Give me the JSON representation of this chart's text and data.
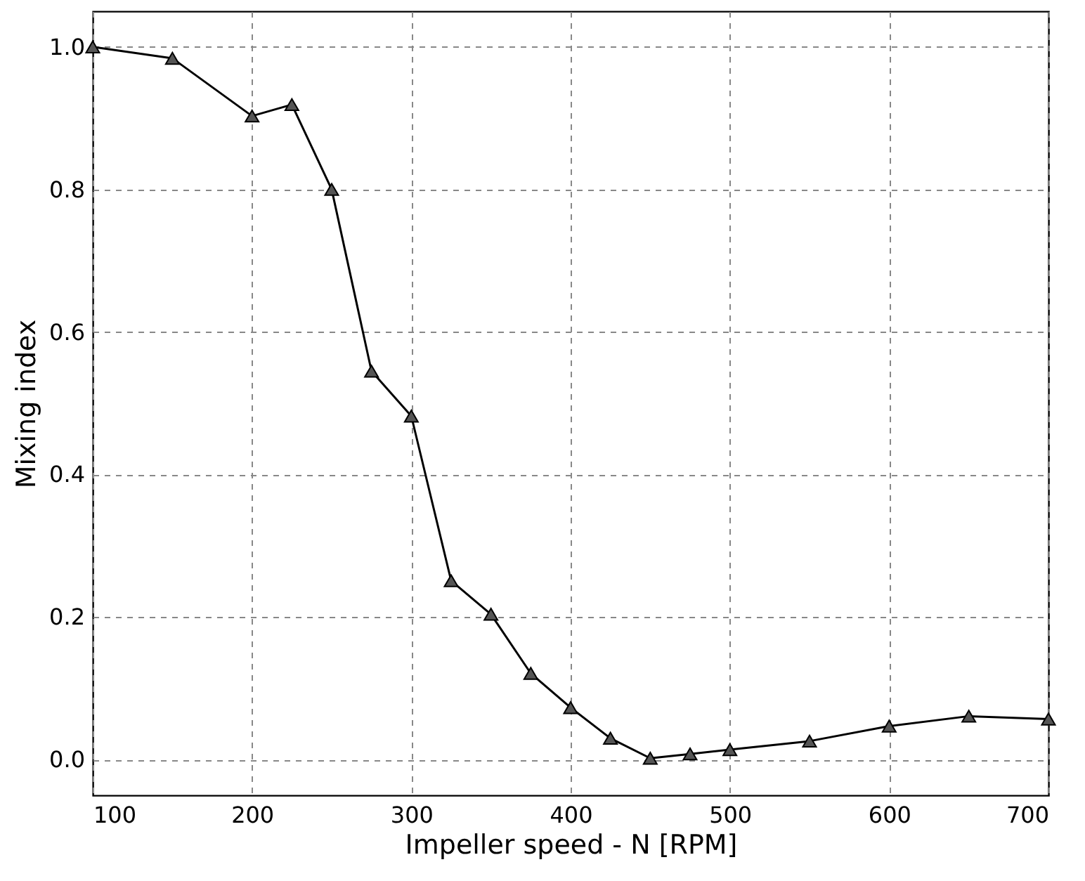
{
  "chart_data": {
    "type": "line",
    "xlabel": "Impeller speed - N [RPM]",
    "ylabel": "Mixing index",
    "x": [
      100,
      150,
      200,
      225,
      250,
      275,
      300,
      325,
      350,
      375,
      400,
      425,
      450,
      475,
      500,
      550,
      600,
      650,
      700
    ],
    "series": [
      {
        "color": "#000000",
        "values": [
          1.0,
          0.984,
          0.903,
          0.919,
          0.8,
          0.545,
          0.482,
          0.251,
          0.204,
          0.121,
          0.073,
          0.03,
          0.002,
          0.008,
          0.014,
          0.026,
          0.047,
          0.061,
          0.057
        ]
      }
    ],
    "xlim": [
      100,
      700
    ],
    "xticks": [
      100,
      200,
      300,
      400,
      500,
      600,
      700
    ],
    "ylim": [
      -0.05,
      1.05
    ],
    "yticks": [
      {
        "value": 0,
        "label": "0.0"
      },
      {
        "value": 0.2,
        "label": "0.2"
      },
      {
        "value": 0.4,
        "label": "0.4"
      },
      {
        "value": 0.6,
        "label": "0.6"
      },
      {
        "value": 0.8,
        "label": "0.8"
      },
      {
        "value": 1.0,
        "label": "1.0"
      }
    ],
    "grid": true,
    "marker": "triangle",
    "line_style": "solid"
  }
}
